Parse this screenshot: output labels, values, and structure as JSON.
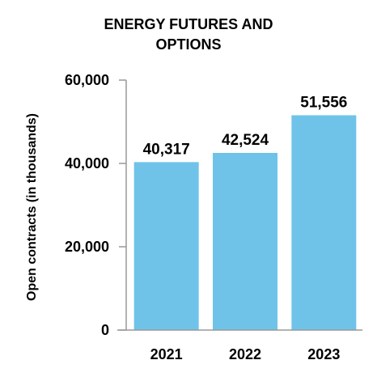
{
  "chart_data": {
    "type": "bar",
    "title_lines": [
      "ENERGY FUTURES AND",
      "OPTIONS"
    ],
    "ylabel": "Open contracts (in thousands)",
    "xlabel": "",
    "categories": [
      "2021",
      "2022",
      "2023"
    ],
    "values": [
      40317,
      42524,
      51556
    ],
    "value_labels": [
      "40,317",
      "42,524",
      "51,556"
    ],
    "ylim": [
      0,
      60000
    ],
    "yticks": [
      0,
      20000,
      40000,
      60000
    ],
    "ytick_labels": [
      "0",
      "20,000",
      "40,000",
      "60,000"
    ],
    "grid": false,
    "legend": "none",
    "bar_color": "#6fc3e8",
    "axis_color": "#999999"
  }
}
